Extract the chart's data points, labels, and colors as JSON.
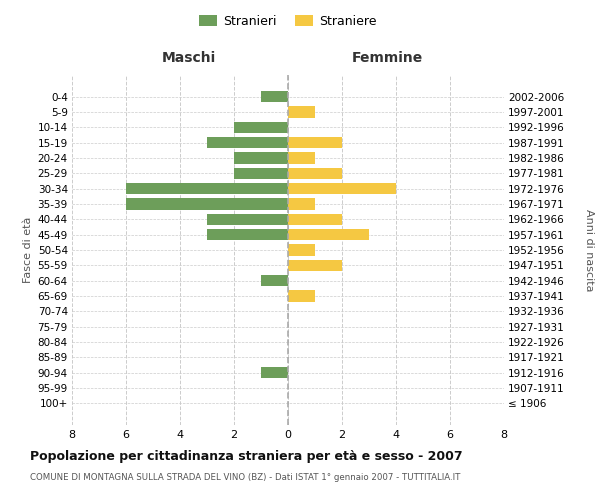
{
  "age_groups": [
    "100+",
    "95-99",
    "90-94",
    "85-89",
    "80-84",
    "75-79",
    "70-74",
    "65-69",
    "60-64",
    "55-59",
    "50-54",
    "45-49",
    "40-44",
    "35-39",
    "30-34",
    "25-29",
    "20-24",
    "15-19",
    "10-14",
    "5-9",
    "0-4"
  ],
  "birth_years": [
    "≤ 1906",
    "1907-1911",
    "1912-1916",
    "1917-1921",
    "1922-1926",
    "1927-1931",
    "1932-1936",
    "1937-1941",
    "1942-1946",
    "1947-1951",
    "1952-1956",
    "1957-1961",
    "1962-1966",
    "1967-1971",
    "1972-1976",
    "1977-1981",
    "1982-1986",
    "1987-1991",
    "1992-1996",
    "1997-2001",
    "2002-2006"
  ],
  "maschi": [
    0,
    0,
    1,
    0,
    0,
    0,
    0,
    0,
    1,
    0,
    0,
    3,
    3,
    6,
    6,
    2,
    2,
    3,
    2,
    0,
    1
  ],
  "femmine": [
    0,
    0,
    0,
    0,
    0,
    0,
    0,
    1,
    0,
    2,
    1,
    3,
    2,
    1,
    4,
    2,
    1,
    2,
    0,
    1,
    0
  ],
  "maschi_color": "#6d9e5a",
  "femmine_color": "#f5c842",
  "bar_height": 0.75,
  "xlim": [
    -8,
    8
  ],
  "xlabel_maschi": "Maschi",
  "xlabel_femmine": "Femmine",
  "ylabel_left": "Fasce di età",
  "ylabel_right": "Anni di nascita",
  "title": "Popolazione per cittadinanza straniera per età e sesso - 2007",
  "subtitle": "COMUNE DI MONTAGNA SULLA STRADA DEL VINO (BZ) - Dati ISTAT 1° gennaio 2007 - TUTTITALIA.IT",
  "legend_stranieri": "Stranieri",
  "legend_straniere": "Straniere",
  "grid_color": "#cccccc",
  "bg_color": "#ffffff",
  "xticks": [
    -8,
    -6,
    -4,
    -2,
    0,
    2,
    4,
    6,
    8
  ]
}
